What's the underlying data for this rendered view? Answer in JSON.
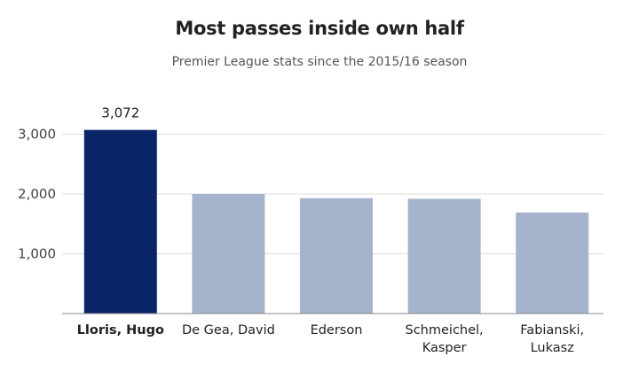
{
  "chart_data": {
    "type": "bar",
    "title": "Most passes inside own half",
    "subtitle": "Premier League stats since the 2015/16 season",
    "categories": [
      "Lloris, Hugo",
      "De Gea, David",
      "Ederson",
      "Schmeichel, Kasper",
      "Fabianski, Lukasz"
    ],
    "values": [
      3072,
      2000,
      1930,
      1920,
      1690
    ],
    "data_labels": [
      "3,072",
      "",
      "",
      "",
      ""
    ],
    "highlight_index": 0,
    "colors": {
      "highlight": "#0a2468",
      "default": "#a5b3cd",
      "grid": "#dddddd",
      "axis": "#888888"
    },
    "ylim": [
      0,
      3300
    ],
    "yticks": [
      1000,
      2000,
      3000
    ],
    "ytick_labels": [
      "1,000",
      "2,000",
      "3,000"
    ],
    "xlabel": "",
    "ylabel": "",
    "grid": true
  }
}
